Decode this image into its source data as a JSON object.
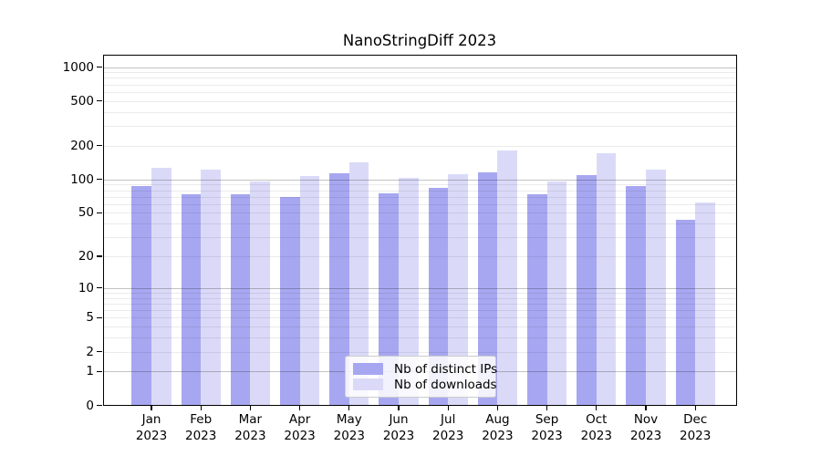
{
  "figure": {
    "background": "#ffffff"
  },
  "chart_data": {
    "type": "bar",
    "title": "NanoStringDiff 2023",
    "categories": [
      "Jan 2023",
      "Feb 2023",
      "Mar 2023",
      "Apr 2023",
      "May 2023",
      "Jun 2023",
      "Jul 2023",
      "Aug 2023",
      "Sep 2023",
      "Oct 2023",
      "Nov 2023",
      "Dec 2023"
    ],
    "series": [
      {
        "key": "distinct-ips",
        "name": "Nb of distinct IPs",
        "color": "#a7a7f1",
        "values": [
          87,
          73,
          73,
          70,
          114,
          75,
          84,
          116,
          74,
          110,
          87,
          43
        ]
      },
      {
        "key": "downloads",
        "name": "Nb of downloads",
        "color": "#dadaf8",
        "values": [
          127,
          122,
          96,
          107,
          141,
          104,
          112,
          180,
          95,
          172,
          122,
          62
        ]
      }
    ],
    "yscale": "log1p",
    "y_ticks": [
      0,
      1,
      2,
      5,
      10,
      20,
      50,
      100,
      200,
      500,
      1000
    ],
    "ylim": [
      0,
      1000
    ],
    "xlabel": "",
    "ylabel": "",
    "grid": "horizontal",
    "legend_position": "lower center"
  },
  "colors": {
    "frame": "#000000",
    "grid_minor": "rgba(0,0,0,0.08)",
    "grid_major": "rgba(0,0,0,0.24)",
    "legend_border": "#cccccc",
    "legend_bg": "rgba(255,255,255,0.85)",
    "text": "#000000"
  }
}
